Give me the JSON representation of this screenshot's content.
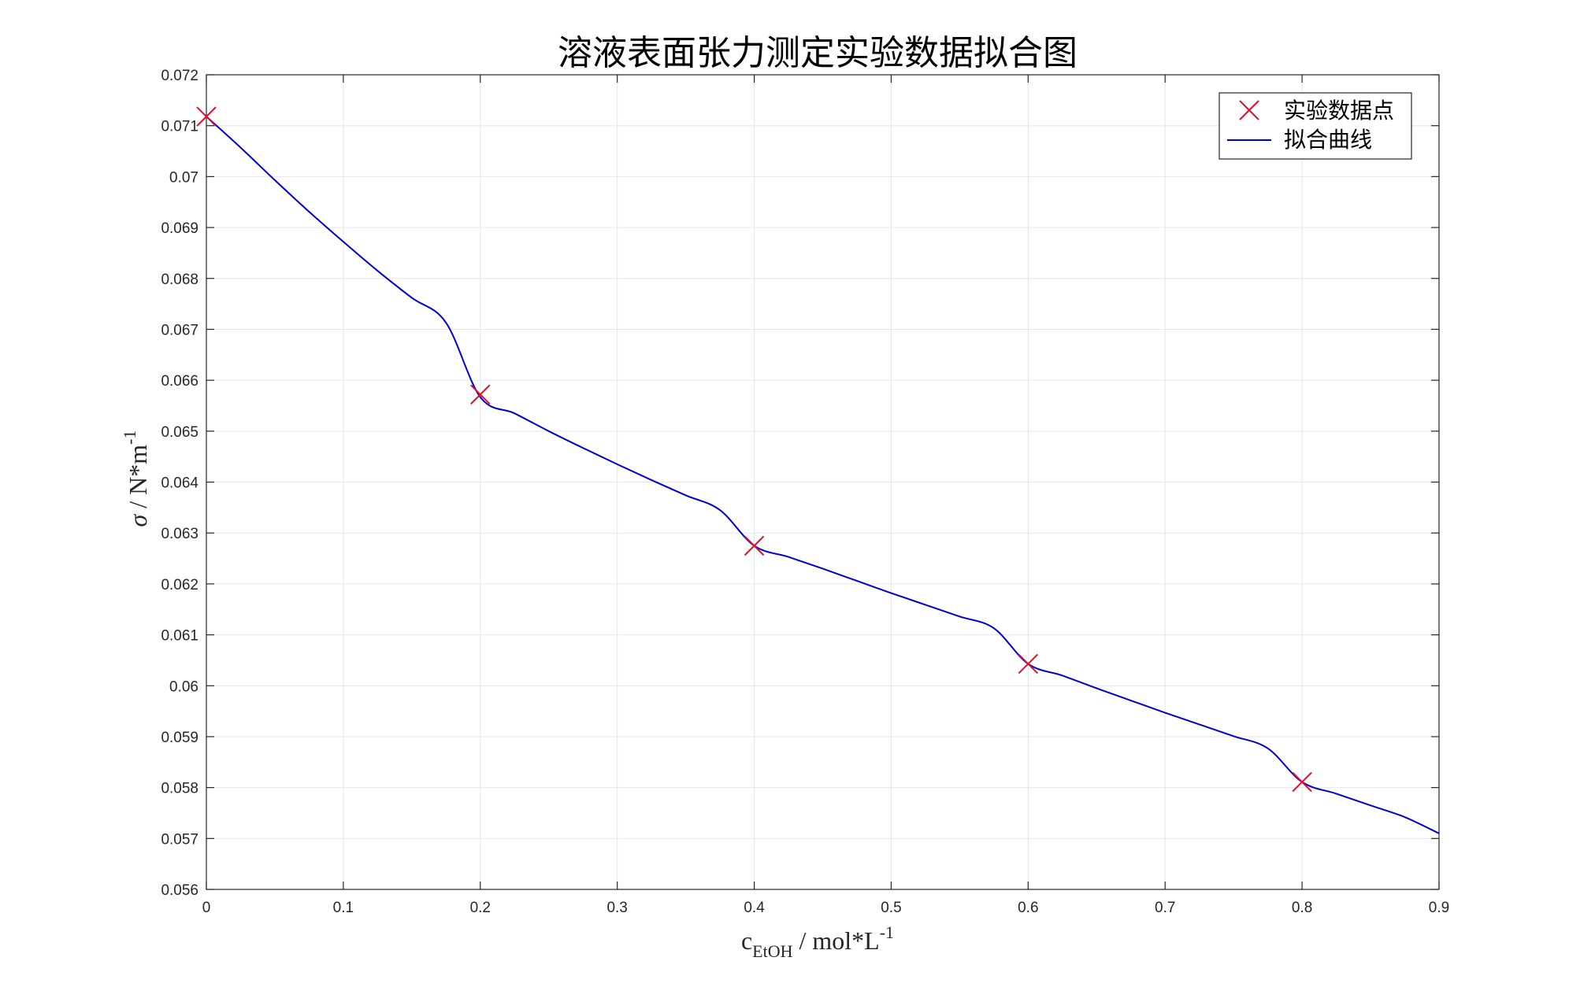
{
  "chart_data": {
    "type": "line",
    "title": "溶液表面张力测定实验数据拟合图",
    "xlabel": {
      "main": "c",
      "sub": "EtOH",
      "unit": " / mol*L",
      "sup": "-1"
    },
    "ylabel": {
      "symbol": "σ",
      "unit": " / N*m",
      "sup": "-1"
    },
    "xlim": [
      0,
      0.9
    ],
    "ylim": [
      0.056,
      0.072
    ],
    "xticks": [
      0,
      0.1,
      0.2,
      0.3,
      0.4,
      0.5,
      0.6,
      0.7,
      0.8,
      0.9
    ],
    "xtick_labels": [
      "0",
      "0.1",
      "0.2",
      "0.3",
      "0.4",
      "0.5",
      "0.6",
      "0.7",
      "0.8",
      "0.9"
    ],
    "yticks": [
      0.056,
      0.057,
      0.058,
      0.059,
      0.06,
      0.061,
      0.062,
      0.063,
      0.064,
      0.065,
      0.066,
      0.067,
      0.068,
      0.069,
      0.07,
      0.071,
      0.072
    ],
    "ytick_labels": [
      "0.056",
      "0.057",
      "0.058",
      "0.059",
      "0.06",
      "0.061",
      "0.062",
      "0.063",
      "0.064",
      "0.065",
      "0.066",
      "0.067",
      "0.068",
      "0.069",
      "0.07",
      "0.071",
      "0.072"
    ],
    "grid": true,
    "legend_position": "top-right",
    "series": [
      {
        "name": "实验数据点",
        "kind": "scatter",
        "marker": "x",
        "color": "#e0102d",
        "x": [
          0,
          0.2,
          0.4,
          0.6,
          0.8
        ],
        "y": [
          0.07118,
          0.06572,
          0.06275,
          0.06043,
          0.05811
        ]
      },
      {
        "name": "拟合曲线",
        "kind": "line",
        "color": "#0000cc",
        "x": [
          0,
          0.025,
          0.05,
          0.075,
          0.1,
          0.125,
          0.15,
          0.175,
          0.2,
          0.225,
          0.25,
          0.275,
          0.3,
          0.325,
          0.35,
          0.375,
          0.4,
          0.425,
          0.45,
          0.475,
          0.5,
          0.525,
          0.55,
          0.575,
          0.6,
          0.625,
          0.65,
          0.675,
          0.7,
          0.725,
          0.75,
          0.775,
          0.8,
          0.825,
          0.85,
          0.875,
          0.9
        ],
        "y": [
          0.07118,
          0.07057,
          0.06993,
          0.06931,
          0.06872,
          0.06815,
          0.06762,
          0.06713,
          0.06567,
          0.06535,
          0.065,
          0.06467,
          0.06435,
          0.06404,
          0.06374,
          0.06345,
          0.06275,
          0.06253,
          0.0623,
          0.06206,
          0.06182,
          0.06159,
          0.06136,
          0.06113,
          0.06043,
          0.0602,
          0.05995,
          0.05971,
          0.05947,
          0.05924,
          0.05901,
          0.05877,
          0.05811,
          0.05788,
          0.05765,
          0.05742,
          0.0571
        ]
      }
    ]
  }
}
